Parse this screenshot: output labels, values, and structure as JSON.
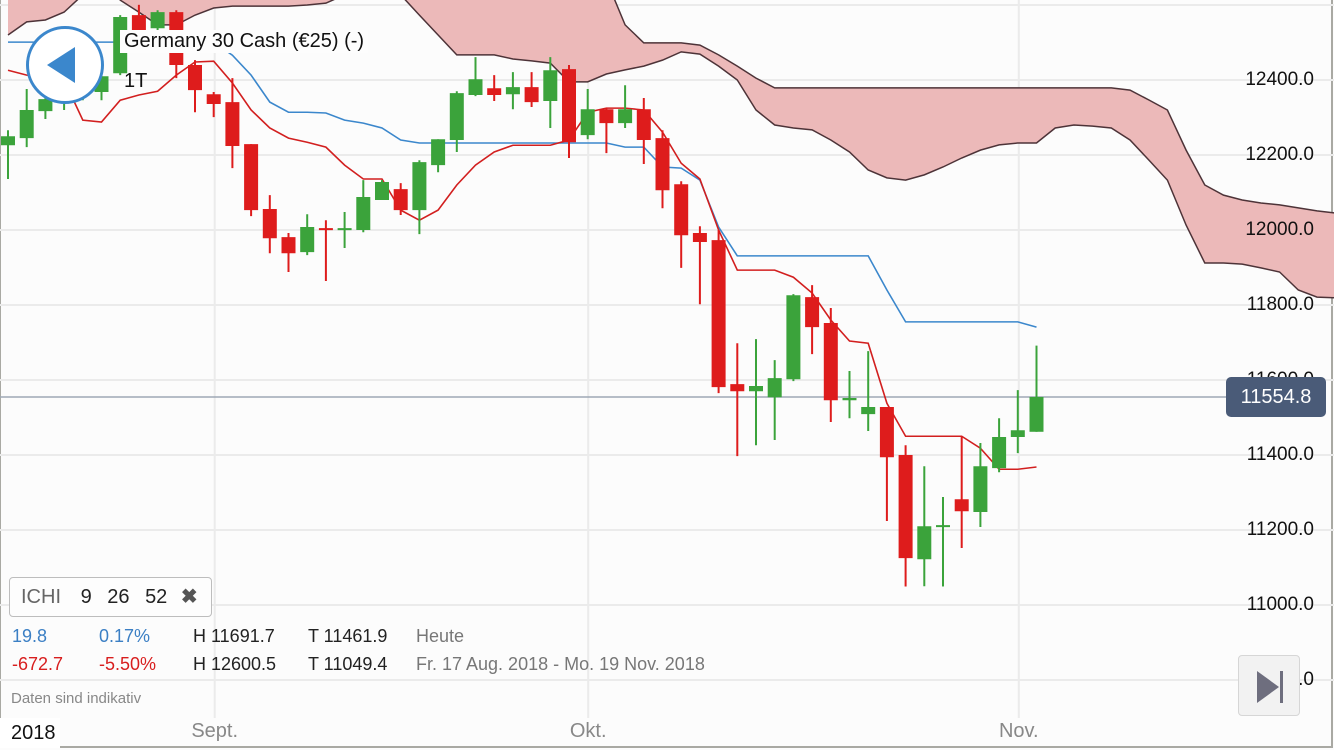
{
  "header": {
    "title": "Germany 30 Cash (€25) (-)",
    "period": "1T"
  },
  "indicator": {
    "name": "ICHI",
    "p1": "9",
    "p2": "26",
    "p3": "52",
    "remove_icon": "close-icon",
    "remove_label": "✖"
  },
  "stats": {
    "today": {
      "change": "19.8",
      "change_pct": "0.17%",
      "high": "H 11691.7",
      "low": "T 11461.9",
      "label": "Heute"
    },
    "range": {
      "change": "-672.7",
      "change_pct": "-5.50%",
      "high": "H 12600.5",
      "low": "T 11049.4",
      "label": "Fr. 17 Aug. 2018 - Mo. 19 Nov. 2018"
    }
  },
  "note": "Daten sind indikativ",
  "x_axis": {
    "year": "2018",
    "labels": [
      {
        "text": "Sept.",
        "index": 11
      },
      {
        "text": "Okt.",
        "index": 31
      },
      {
        "text": "Nov.",
        "index": 54
      }
    ]
  },
  "y_axis": {
    "labels": [
      "12400.0",
      "12200.0",
      "12000.0",
      "11800.0",
      "11600.0",
      "11400.0",
      "11200.0",
      "11000.0",
      "10800.0"
    ]
  },
  "last_price": "11554.8",
  "colors": {
    "up": "#3ba33b",
    "down": "#de1c1c",
    "tenkan": "#d21f1f",
    "kijun": "#3b87cc",
    "cloud": "#ecb9b9",
    "cloud_edge": "#4d3338",
    "last_line": "#9ea8b5",
    "accent": "#3b87cc"
  },
  "chart_data": {
    "type": "candlestick",
    "ylim": [
      10750,
      12620
    ],
    "grid": true,
    "candles": [
      [
        12226,
        12266,
        12136,
        12250
      ],
      [
        12245,
        12376,
        12221,
        12320
      ],
      [
        12317,
        12376,
        12296,
        12349
      ],
      [
        12352,
        12400,
        12320,
        12378
      ],
      [
        12368,
        12421,
        12346,
        12400
      ],
      [
        12368,
        12426,
        12346,
        12410
      ],
      [
        12418,
        12573,
        12413,
        12568
      ],
      [
        12573,
        12600.5,
        12493,
        12506
      ],
      [
        12538,
        12586,
        12520,
        12581
      ],
      [
        12581,
        12586,
        12405,
        12440
      ],
      [
        12440,
        12453,
        12314,
        12373
      ],
      [
        12362,
        12368,
        12301,
        12336
      ],
      [
        12341,
        12405,
        12165,
        12224
      ],
      [
        12229,
        12229,
        12037,
        12053
      ],
      [
        12056,
        12093,
        11938,
        11978
      ],
      [
        11981,
        11992,
        11888,
        11938
      ],
      [
        11941,
        12042,
        11933,
        12008
      ],
      [
        12005,
        12026,
        11864,
        12000
      ],
      [
        12000,
        12048,
        11952,
        12005
      ],
      [
        12000,
        12133,
        11994,
        12088
      ],
      [
        12080,
        12133,
        12080,
        12128
      ],
      [
        12109,
        12125,
        12040,
        12053
      ],
      [
        12053,
        12186,
        11989,
        12181
      ],
      [
        12173,
        12242,
        12154,
        12242
      ],
      [
        12240,
        12370,
        12208,
        12365
      ],
      [
        12360,
        12461,
        12357,
        12402
      ],
      [
        12378,
        12413,
        12344,
        12360
      ],
      [
        12362,
        12421,
        12322,
        12381
      ],
      [
        12381,
        12421,
        12328,
        12341
      ],
      [
        12344,
        12461,
        12272,
        12426
      ],
      [
        12429,
        12440,
        12192,
        12234
      ],
      [
        12253,
        12376,
        12242,
        12322
      ],
      [
        12322,
        12325,
        12205,
        12285
      ],
      [
        12285,
        12386,
        12272,
        12322
      ],
      [
        12322,
        12352,
        12176,
        12240
      ],
      [
        12245,
        12266,
        12058,
        12106
      ],
      [
        12122,
        12130,
        11899,
        11986
      ],
      [
        11992,
        12010,
        11802,
        11968
      ],
      [
        11973,
        12000,
        11565,
        11581
      ],
      [
        11589,
        11698,
        11397,
        11570
      ],
      [
        11570,
        11709,
        11426,
        11584
      ],
      [
        11554,
        11653,
        11440,
        11605
      ],
      [
        11602,
        11829,
        11597,
        11826
      ],
      [
        11821,
        11853,
        11669,
        11741
      ],
      [
        11752,
        11792,
        11488,
        11546
      ],
      [
        11546,
        11624,
        11498,
        11552
      ],
      [
        11509,
        11677,
        11464,
        11528
      ],
      [
        11528,
        11528,
        11224,
        11394
      ],
      [
        11400,
        11426,
        11049.4,
        11125
      ],
      [
        11122,
        11370,
        11050,
        11210
      ],
      [
        11208,
        11288,
        11049.4,
        11213
      ],
      [
        11282,
        11448,
        11152,
        11250
      ],
      [
        11248,
        11432,
        11208,
        11370
      ],
      [
        11365,
        11498,
        11354,
        11448
      ],
      [
        11448,
        11573,
        11405,
        11466
      ],
      [
        11461.9,
        11691.7,
        11461.9,
        11554.8
      ]
    ],
    "tenkan": [
      12426,
      12413,
      12408,
      12400,
      12293,
      12288,
      12346,
      12360,
      12370,
      12413,
      12448,
      12450,
      12392,
      12320,
      12272,
      12245,
      12234,
      12221,
      12173,
      12136,
      12136,
      12053,
      12026,
      12053,
      12120,
      12173,
      12208,
      12226,
      12226,
      12226,
      12240,
      12314,
      12325,
      12325,
      12320,
      12261,
      12178,
      12136,
      12000,
      11893,
      11893,
      11893,
      11874,
      11832,
      11760,
      11704,
      11698,
      11538,
      11450,
      11450,
      11450,
      11450,
      11418,
      11362,
      11362,
      11368
    ],
    "kijun": [
      12501,
      12501,
      12501,
      12501,
      12501,
      12501,
      12501,
      12493,
      12493,
      12501,
      12501,
      12501,
      12466,
      12413,
      12341,
      12314,
      12314,
      12312,
      12293,
      12285,
      12272,
      12240,
      12232,
      12232,
      12232,
      12232,
      12232,
      12232,
      12232,
      12232,
      12232,
      12232,
      12232,
      12221,
      12221,
      12168,
      12165,
      12133,
      12008,
      11931,
      11931,
      11931,
      11931,
      11931,
      11931,
      11931,
      11931,
      11840,
      11755,
      11755,
      11755,
      11755,
      11755,
      11755,
      11755,
      11741
    ],
    "cloud_line_1": [
      12520,
      12555,
      12560,
      12581,
      12627,
      12693,
      12693,
      12693,
      12693,
      12693,
      12693,
      12693,
      12693,
      12693,
      12693,
      12693,
      12693,
      12693,
      12693,
      12693,
      12693,
      12627,
      12573,
      12520,
      12467,
      12467,
      12467,
      12456,
      12451,
      12445,
      12395,
      12395,
      12416,
      12427,
      12437,
      12453,
      12475,
      12469,
      12437,
      12400,
      12320,
      12280,
      12272,
      12267,
      12240,
      12208,
      12160,
      12139,
      12133,
      12147,
      12168,
      12192,
      12213,
      12227,
      12232,
      12232,
      12272,
      12280,
      12277,
      12272,
      12240,
      12187,
      12133,
      12013,
      11912,
      11912,
      11909,
      11899,
      11888,
      11840,
      11821,
      11819
    ],
    "cloud_line_2": [
      12720,
      12720,
      12720,
      12720,
      12720,
      12720,
      12613,
      12581,
      12547,
      12547,
      12573,
      12592,
      12597,
      12597,
      12597,
      12597,
      12600,
      12605,
      12627,
      12667,
      12667,
      12667,
      12667,
      12667,
      12667,
      12667,
      12667,
      12667,
      12667,
      12667,
      12667,
      12667,
      12667,
      12547,
      12499,
      12499,
      12499,
      12493,
      12467,
      12437,
      12405,
      12379,
      12379,
      12379,
      12379,
      12379,
      12379,
      12379,
      12379,
      12379,
      12379,
      12379,
      12379,
      12379,
      12379,
      12379,
      12379,
      12379,
      12379,
      12379,
      12373,
      12347,
      12320,
      12213,
      12120,
      12093,
      12080,
      12072,
      12067,
      12059,
      12051,
      12045
    ],
    "last_value": 11554.8
  }
}
